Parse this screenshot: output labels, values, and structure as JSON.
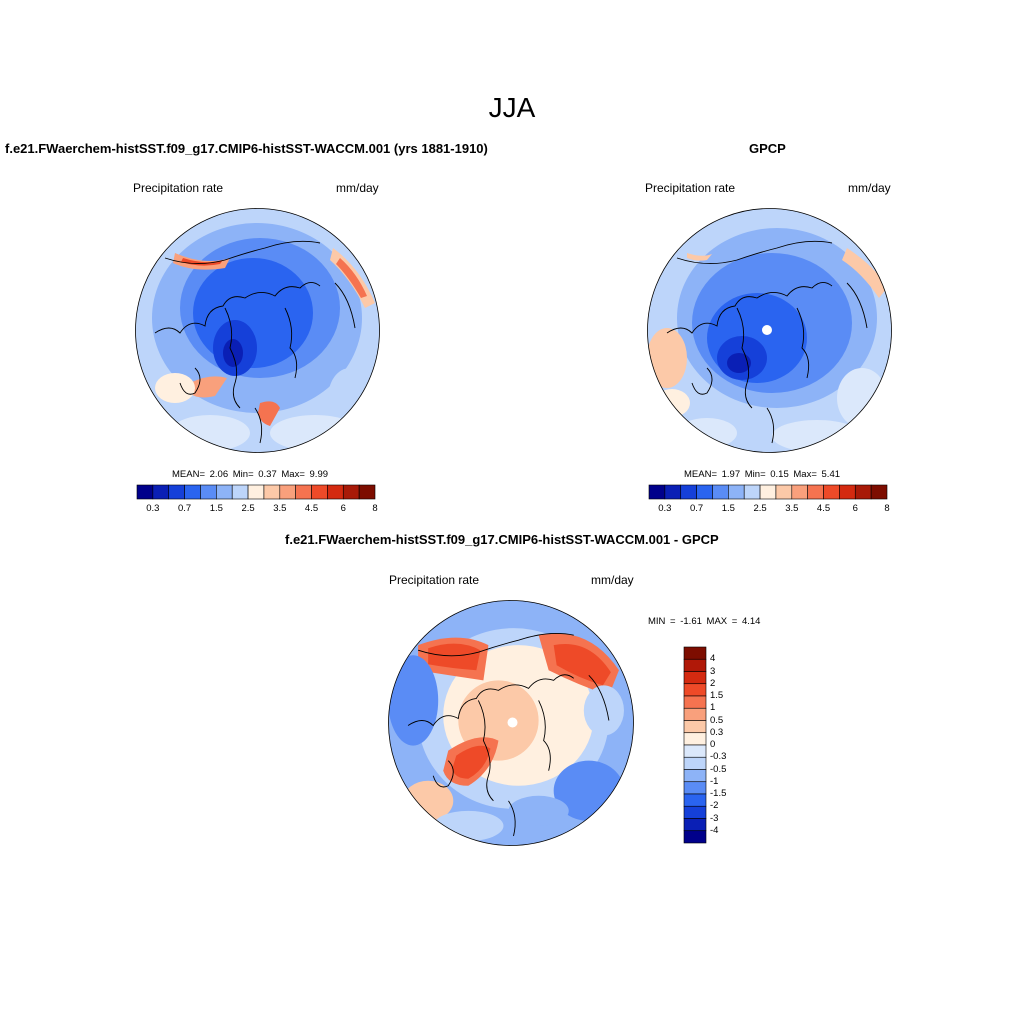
{
  "main_title": "JJA",
  "panels": [
    {
      "title": "f.e21.FWaerchem-histSST.f09_g17.CMIP6-histSST-WACCM.001 (yrs 1881-1910)",
      "variable": "Precipitation rate",
      "units": "mm/day",
      "stats": "MEAN=   2.06  Min=   0.37  Max=   9.99"
    },
    {
      "title": "GPCP",
      "variable": "Precipitation rate",
      "units": "mm/day",
      "stats": "MEAN=   1.97  Min=   0.15  Max=   5.41"
    },
    {
      "title": "f.e21.FWaerchem-histSST.f09_g17.CMIP6-histSST-WACCM.001 - GPCP",
      "variable": "Precipitation rate",
      "units": "mm/day",
      "stats": "MIN =  -1.61 MAX =   4.14"
    }
  ],
  "colorbar_abs": {
    "labels": [
      "0.3",
      "0.7",
      "1.5",
      "2.5",
      "3.5",
      "4.5",
      "6",
      "8"
    ],
    "colors": [
      "#00008b",
      "#0a1fb5",
      "#1540d9",
      "#2a64f0",
      "#5a8cf5",
      "#8db3f7",
      "#bdd5fa",
      "#fff0e0",
      "#fcc9a8",
      "#f9a07c",
      "#f57350",
      "#ee4a28",
      "#d42a10",
      "#a81a08",
      "#7d0d00"
    ]
  },
  "colorbar_diff": {
    "labels": [
      "4",
      "3",
      "2",
      "1.5",
      "1",
      "0.5",
      "0.3",
      "0",
      "-0.3",
      "-0.5",
      "-1",
      "-1.5",
      "-2",
      "-3",
      "-4"
    ],
    "colors": [
      "#7d0d00",
      "#b01808",
      "#d42a10",
      "#ee4a28",
      "#f57350",
      "#f9a07c",
      "#fcc9a8",
      "#fff0e0",
      "#dbe8fb",
      "#bdd5fa",
      "#8db3f7",
      "#5a8cf5",
      "#2a64f0",
      "#1540d9",
      "#0a1fb5",
      "#00008b"
    ]
  }
}
